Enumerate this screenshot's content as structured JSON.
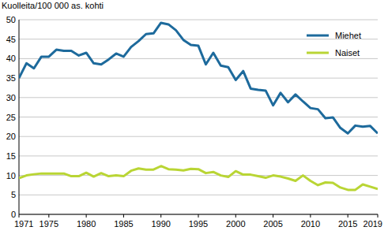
{
  "chart_data": {
    "type": "line",
    "y_label": "Kuolleita/100 000 as. kohti",
    "x": [
      1971,
      1972,
      1973,
      1974,
      1975,
      1976,
      1977,
      1978,
      1979,
      1980,
      1981,
      1982,
      1983,
      1984,
      1985,
      1986,
      1987,
      1988,
      1989,
      1990,
      1991,
      1992,
      1993,
      1994,
      1995,
      1996,
      1997,
      1998,
      1999,
      2000,
      2001,
      2002,
      2003,
      2004,
      2005,
      2006,
      2007,
      2008,
      2009,
      2010,
      2011,
      2012,
      2013,
      2014,
      2015,
      2016,
      2017,
      2018,
      2019
    ],
    "series": [
      {
        "name": "Miehet",
        "color": "#1d6a9c",
        "values": [
          35,
          38.8,
          37.5,
          40.5,
          40.5,
          42.3,
          42,
          42,
          40.8,
          41.5,
          38.8,
          38.5,
          39.8,
          41.3,
          40.5,
          43,
          44.5,
          46.3,
          46.5,
          49.2,
          48.8,
          47.3,
          44.8,
          43.5,
          43.3,
          38.5,
          41.5,
          38.2,
          37.8,
          34.5,
          36.8,
          32.3,
          32,
          31.8,
          28,
          31.2,
          28.8,
          30.8,
          29,
          27.3,
          27,
          24.7,
          24.9,
          22.2,
          20.8,
          22.8,
          22.5,
          22.7,
          20.8
        ]
      },
      {
        "name": "Naiset",
        "color": "#b9d534",
        "values": [
          9.3,
          10,
          10.3,
          10.5,
          10.5,
          10.5,
          10.5,
          9.8,
          9.8,
          10.7,
          9.7,
          10.6,
          9.8,
          10,
          9.8,
          11.2,
          11.8,
          11.5,
          11.5,
          12.4,
          11.6,
          11.5,
          11.3,
          11.7,
          11.6,
          10.6,
          10.9,
          10,
          9.6,
          11.1,
          10.2,
          10.2,
          9.8,
          9.4,
          10,
          9.7,
          9.2,
          8.6,
          10,
          8.6,
          7.5,
          8.2,
          8.1,
          6.9,
          6.3,
          6.3,
          7.7,
          7.1,
          6.5
        ]
      }
    ],
    "xlim": [
      1971,
      2019
    ],
    "xticks": [
      1971,
      1975,
      1980,
      1985,
      1990,
      1995,
      2000,
      2005,
      2010,
      2015,
      2019
    ],
    "ylim": [
      0,
      50
    ],
    "yticks": [
      0,
      5,
      10,
      15,
      20,
      25,
      30,
      35,
      40,
      45,
      50
    ],
    "grid": true,
    "legend": "upper right"
  }
}
